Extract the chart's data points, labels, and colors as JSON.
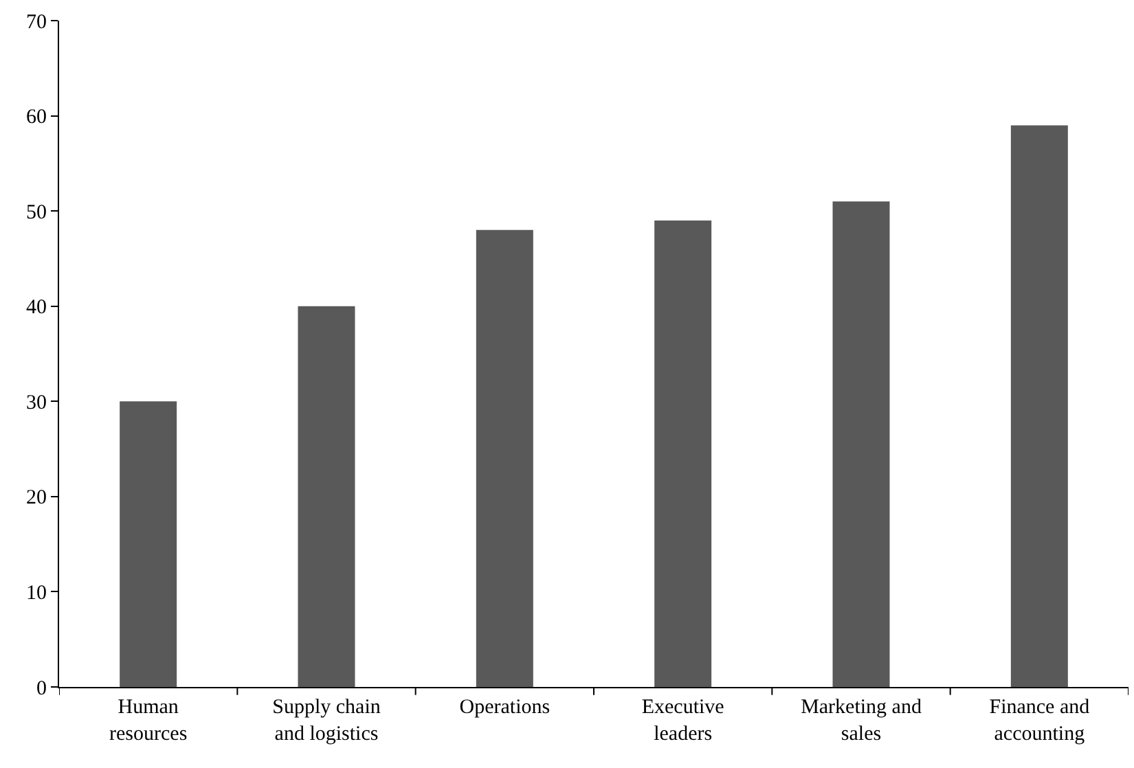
{
  "chart_data": {
    "type": "bar",
    "categories": [
      "Human resources",
      "Supply chain and logistics",
      "Operations",
      "Executive leaders",
      "Marketing and sales",
      "Finance and accounting"
    ],
    "values": [
      30,
      40,
      48,
      49,
      51,
      59
    ],
    "color": "#595959",
    "ylim": [
      0,
      70
    ],
    "yticks": [
      0,
      10,
      20,
      30,
      40,
      50,
      60,
      70
    ]
  }
}
